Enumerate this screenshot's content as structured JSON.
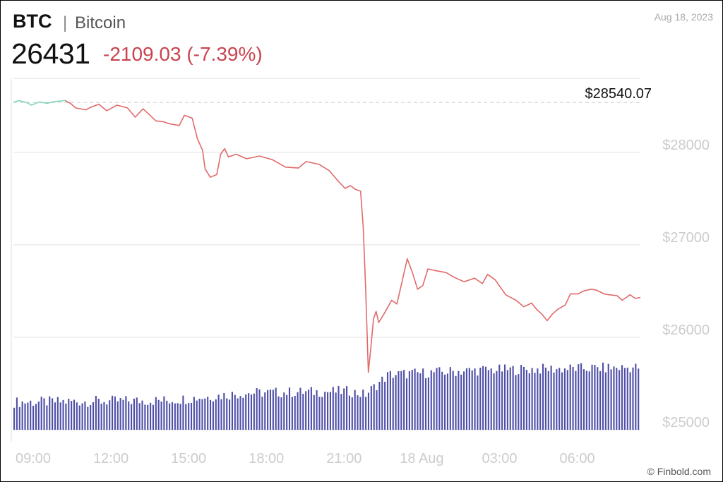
{
  "header": {
    "symbol": "BTC",
    "separator": "|",
    "name": "Bitcoin",
    "price": "26431",
    "change": "-2109.03 (-7.39%)",
    "date": "Aug 18, 2023"
  },
  "footer": {
    "credit": "© Finbold.com"
  },
  "colors": {
    "price_line": "#e06a6a",
    "above_ref_line": "#7ed6b4",
    "volume_bars": "#4f4fa8",
    "grid": "#e2e2e2",
    "axis_text": "#cccccc",
    "change_text": "#c8444e"
  },
  "chart_data": {
    "type": "line",
    "title": "",
    "xlabel": "",
    "ylabel": "",
    "ylim": [
      25000,
      28800
    ],
    "y_ticks": [
      25000,
      26000,
      27000,
      28000
    ],
    "y_tick_labels": [
      "$25000",
      "$26000",
      "$27000",
      "$28000"
    ],
    "x_range": [
      0,
      24.2
    ],
    "x_ticks": [
      0,
      3,
      6,
      9,
      12,
      15,
      18,
      21
    ],
    "x_tick_labels": [
      "09:00",
      "12:00",
      "15:00",
      "18:00",
      "21:00",
      "18 Aug",
      "03:00",
      "06:00"
    ],
    "reference_line": {
      "value": 28540.07,
      "label": "$28540.07",
      "style": "dashed"
    },
    "grid": true,
    "legend": "none",
    "series": [
      {
        "values": [
          {
            "x": 0.0,
            "y": 28540
          },
          {
            "x": 0.2,
            "y": 28560
          },
          {
            "x": 0.5,
            "y": 28540
          },
          {
            "x": 0.7,
            "y": 28510
          },
          {
            "x": 1.0,
            "y": 28545
          },
          {
            "x": 1.3,
            "y": 28530
          },
          {
            "x": 1.6,
            "y": 28550
          },
          {
            "x": 2.0,
            "y": 28560
          },
          {
            "x": 2.2,
            "y": 28530
          },
          {
            "x": 2.4,
            "y": 28480
          },
          {
            "x": 2.8,
            "y": 28460
          },
          {
            "x": 3.0,
            "y": 28490
          },
          {
            "x": 3.3,
            "y": 28520
          },
          {
            "x": 3.6,
            "y": 28450
          },
          {
            "x": 4.0,
            "y": 28510
          },
          {
            "x": 4.4,
            "y": 28480
          },
          {
            "x": 4.7,
            "y": 28380
          },
          {
            "x": 5.0,
            "y": 28470
          },
          {
            "x": 5.2,
            "y": 28420
          },
          {
            "x": 5.5,
            "y": 28340
          },
          {
            "x": 5.8,
            "y": 28330
          },
          {
            "x": 6.0,
            "y": 28310
          },
          {
            "x": 6.4,
            "y": 28290
          },
          {
            "x": 6.6,
            "y": 28400
          },
          {
            "x": 6.9,
            "y": 28370
          },
          {
            "x": 7.1,
            "y": 28150
          },
          {
            "x": 7.3,
            "y": 28020
          },
          {
            "x": 7.4,
            "y": 27820
          },
          {
            "x": 7.6,
            "y": 27730
          },
          {
            "x": 7.85,
            "y": 27760
          },
          {
            "x": 8.0,
            "y": 27980
          },
          {
            "x": 8.15,
            "y": 28040
          },
          {
            "x": 8.3,
            "y": 27950
          },
          {
            "x": 8.6,
            "y": 27980
          },
          {
            "x": 9.0,
            "y": 27930
          },
          {
            "x": 9.5,
            "y": 27960
          },
          {
            "x": 10.0,
            "y": 27920
          },
          {
            "x": 10.5,
            "y": 27840
          },
          {
            "x": 11.0,
            "y": 27830
          },
          {
            "x": 11.3,
            "y": 27900
          },
          {
            "x": 11.8,
            "y": 27870
          },
          {
            "x": 12.2,
            "y": 27800
          },
          {
            "x": 12.5,
            "y": 27700
          },
          {
            "x": 12.8,
            "y": 27610
          },
          {
            "x": 13.0,
            "y": 27640
          },
          {
            "x": 13.2,
            "y": 27600
          },
          {
            "x": 13.4,
            "y": 27580
          },
          {
            "x": 13.5,
            "y": 27200
          },
          {
            "x": 13.6,
            "y": 26500
          },
          {
            "x": 13.7,
            "y": 25620
          },
          {
            "x": 13.8,
            "y": 25900
          },
          {
            "x": 13.9,
            "y": 26200
          },
          {
            "x": 14.0,
            "y": 26280
          },
          {
            "x": 14.1,
            "y": 26160
          },
          {
            "x": 14.3,
            "y": 26250
          },
          {
            "x": 14.6,
            "y": 26400
          },
          {
            "x": 14.8,
            "y": 26360
          },
          {
            "x": 15.0,
            "y": 26600
          },
          {
            "x": 15.2,
            "y": 26850
          },
          {
            "x": 15.4,
            "y": 26700
          },
          {
            "x": 15.6,
            "y": 26520
          },
          {
            "x": 15.8,
            "y": 26560
          },
          {
            "x": 16.0,
            "y": 26740
          },
          {
            "x": 16.3,
            "y": 26720
          },
          {
            "x": 16.7,
            "y": 26700
          },
          {
            "x": 17.0,
            "y": 26650
          },
          {
            "x": 17.4,
            "y": 26600
          },
          {
            "x": 17.8,
            "y": 26640
          },
          {
            "x": 18.1,
            "y": 26580
          },
          {
            "x": 18.3,
            "y": 26680
          },
          {
            "x": 18.6,
            "y": 26620
          },
          {
            "x": 19.0,
            "y": 26460
          },
          {
            "x": 19.4,
            "y": 26400
          },
          {
            "x": 19.7,
            "y": 26330
          },
          {
            "x": 20.0,
            "y": 26370
          },
          {
            "x": 20.2,
            "y": 26300
          },
          {
            "x": 20.4,
            "y": 26250
          },
          {
            "x": 20.6,
            "y": 26180
          },
          {
            "x": 20.8,
            "y": 26250
          },
          {
            "x": 21.0,
            "y": 26300
          },
          {
            "x": 21.3,
            "y": 26350
          },
          {
            "x": 21.5,
            "y": 26470
          },
          {
            "x": 21.8,
            "y": 26470
          },
          {
            "x": 22.0,
            "y": 26500
          },
          {
            "x": 22.3,
            "y": 26520
          },
          {
            "x": 22.5,
            "y": 26510
          },
          {
            "x": 22.8,
            "y": 26470
          },
          {
            "x": 23.0,
            "y": 26460
          },
          {
            "x": 23.3,
            "y": 26450
          },
          {
            "x": 23.5,
            "y": 26400
          },
          {
            "x": 23.8,
            "y": 26460
          },
          {
            "x": 24.0,
            "y": 26420
          },
          {
            "x": 24.2,
            "y": 26431
          }
        ]
      }
    ],
    "volume_bars": {
      "count": 230,
      "profile": [
        {
          "x": 0.0,
          "level": 0.3
        },
        {
          "x": 6.0,
          "level": 0.32
        },
        {
          "x": 9.0,
          "level": 0.4
        },
        {
          "x": 13.0,
          "level": 0.42
        },
        {
          "x": 13.6,
          "level": 0.38
        },
        {
          "x": 14.5,
          "level": 0.6
        },
        {
          "x": 18.0,
          "level": 0.65
        },
        {
          "x": 24.2,
          "level": 0.68
        }
      ]
    }
  }
}
